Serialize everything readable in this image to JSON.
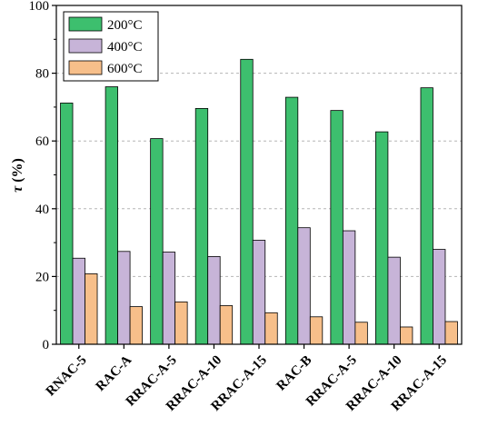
{
  "chart_data": {
    "type": "bar",
    "title": "",
    "xlabel": "",
    "ylabel": "τ (%)",
    "ylim": [
      0,
      100
    ],
    "yticks": [
      0,
      20,
      40,
      60,
      80,
      100
    ],
    "grid": "horizontal dashed",
    "legend_position": "top-left",
    "categories": [
      "RNAC-5",
      "RAC-A",
      "RRAC-A-5",
      "RRAC-A-10",
      "RRAC-A-15",
      "RAC-B",
      "RRAC-A-5",
      "RRAC-A-10",
      "RRAC-A-15"
    ],
    "series": [
      {
        "name": "200°C",
        "color": "#3dbf6e",
        "values": [
          71.2,
          76.0,
          60.7,
          69.6,
          84.1,
          72.9,
          69.0,
          62.7,
          75.7
        ]
      },
      {
        "name": "400°C",
        "color": "#c7b4d8",
        "values": [
          25.4,
          27.4,
          27.2,
          25.9,
          30.7,
          34.4,
          33.5,
          25.7,
          28.0
        ]
      },
      {
        "name": "600°C",
        "color": "#f7bf8a",
        "values": [
          20.8,
          11.1,
          12.5,
          11.4,
          9.3,
          8.1,
          6.5,
          5.1,
          6.7
        ]
      }
    ]
  }
}
